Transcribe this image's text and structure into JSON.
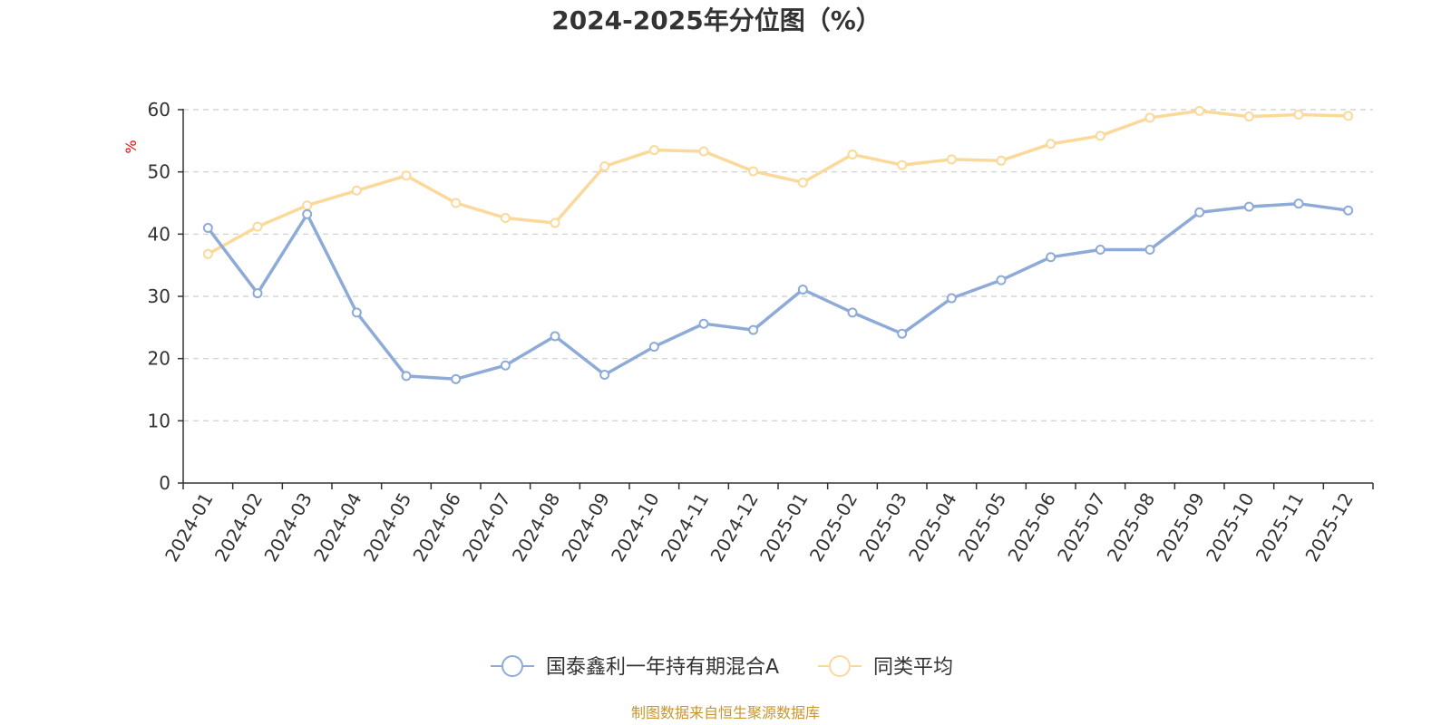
{
  "chart_data": {
    "type": "line",
    "title": "2024-2025年分位图（%）",
    "ylabel": "%",
    "xlabel": "",
    "ylim": [
      0,
      60
    ],
    "yticks": [
      0,
      10,
      20,
      30,
      40,
      50,
      60
    ],
    "grid": true,
    "categories": [
      "2024-01",
      "2024-02",
      "2024-03",
      "2024-04",
      "2024-05",
      "2024-06",
      "2024-07",
      "2024-08",
      "2024-09",
      "2024-10",
      "2024-11",
      "2024-12",
      "2025-01",
      "2025-02",
      "2025-03",
      "2025-04",
      "2025-05",
      "2025-06",
      "2025-07",
      "2025-08",
      "2025-09",
      "2025-10",
      "2025-11",
      "2025-12"
    ],
    "series": [
      {
        "name": "国泰鑫利一年持有期混合A",
        "color": "#8eabd8",
        "values": [
          41.0,
          30.5,
          43.2,
          27.4,
          17.2,
          16.7,
          18.9,
          23.6,
          17.4,
          21.9,
          25.6,
          24.6,
          31.1,
          27.4,
          24.0,
          29.7,
          32.6,
          36.3,
          37.5,
          37.5,
          43.5,
          44.4,
          44.9,
          43.8
        ]
      },
      {
        "name": "同类平均",
        "color": "#fbd99a",
        "values": [
          36.8,
          41.2,
          44.6,
          47.0,
          49.4,
          45.0,
          42.6,
          41.8,
          50.9,
          53.5,
          53.3,
          50.1,
          48.3,
          52.8,
          51.1,
          52.0,
          51.8,
          54.5,
          55.8,
          58.7,
          59.8,
          58.9,
          59.2,
          59.0
        ]
      }
    ],
    "legend_position": "bottom-center",
    "source_note": "制图数据来自恒生聚源数据库",
    "colors": {
      "axis": "#333333",
      "grid": "#cccccc",
      "unit": "#ff0000",
      "source": "#c8962e"
    }
  }
}
